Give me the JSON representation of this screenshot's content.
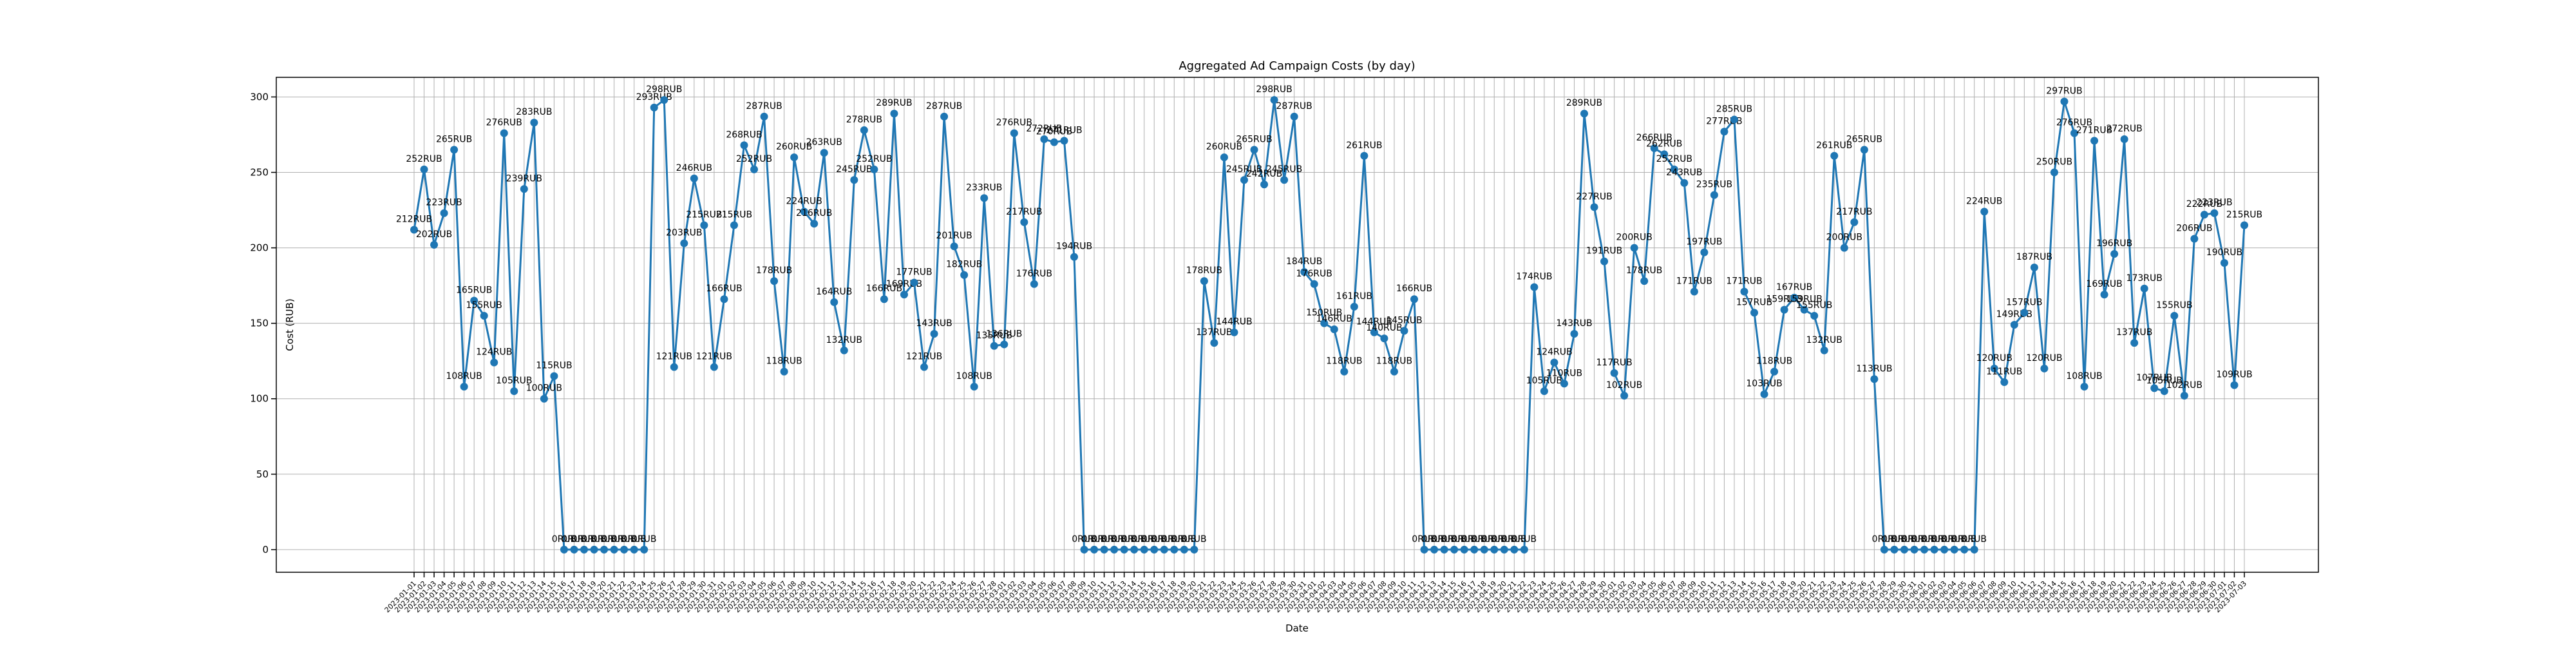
{
  "chart_data": {
    "type": "line",
    "title": "Aggregated Ad Campaign Costs (by day)",
    "x_label": "Date",
    "y_label": "Cost (RUB)",
    "categories": [
      "2023-01-01",
      "2023-01-02",
      "2023-01-03",
      "2023-01-04",
      "2023-01-05",
      "2023-01-06",
      "2023-01-07",
      "2023-01-08",
      "2023-01-09",
      "2023-01-10",
      "2023-01-11",
      "2023-01-12",
      "2023-01-13",
      "2023-01-14",
      "2023-01-15",
      "2023-01-16",
      "2023-01-17",
      "2023-01-18",
      "2023-01-19",
      "2023-01-20",
      "2023-01-21",
      "2023-01-22",
      "2023-01-23",
      "2023-01-24",
      "2023-01-25",
      "2023-01-26",
      "2023-01-27",
      "2023-01-28",
      "2023-01-29",
      "2023-01-30",
      "2023-01-31",
      "2023-02-01",
      "2023-02-02",
      "2023-02-03",
      "2023-02-04",
      "2023-02-05",
      "2023-02-06",
      "2023-02-07",
      "2023-02-08",
      "2023-02-09",
      "2023-02-10",
      "2023-02-11",
      "2023-02-12",
      "2023-02-13",
      "2023-02-14",
      "2023-02-15",
      "2023-02-16",
      "2023-02-17",
      "2023-02-18",
      "2023-02-19",
      "2023-02-20",
      "2023-02-21",
      "2023-02-22",
      "2023-02-23",
      "2023-02-24",
      "2023-02-25",
      "2023-02-26",
      "2023-02-27",
      "2023-02-28",
      "2023-03-01",
      "2023-03-02",
      "2023-03-03",
      "2023-03-04",
      "2023-03-05",
      "2023-03-06",
      "2023-03-07",
      "2023-03-08",
      "2023-03-09",
      "2023-03-10",
      "2023-03-11",
      "2023-03-12",
      "2023-03-13",
      "2023-03-14",
      "2023-03-15",
      "2023-03-16",
      "2023-03-17",
      "2023-03-18",
      "2023-03-19",
      "2023-03-20",
      "2023-03-21",
      "2023-03-22",
      "2023-03-23",
      "2023-03-24",
      "2023-03-25",
      "2023-03-26",
      "2023-03-27",
      "2023-03-28",
      "2023-03-29",
      "2023-03-30",
      "2023-03-31",
      "2023-04-01",
      "2023-04-02",
      "2023-04-03",
      "2023-04-04",
      "2023-04-05",
      "2023-04-06",
      "2023-04-07",
      "2023-04-08",
      "2023-04-09",
      "2023-04-10",
      "2023-04-11",
      "2023-04-12",
      "2023-04-13",
      "2023-04-14",
      "2023-04-15",
      "2023-04-16",
      "2023-04-17",
      "2023-04-18",
      "2023-04-19",
      "2023-04-20",
      "2023-04-21",
      "2023-04-22",
      "2023-04-23",
      "2023-04-24",
      "2023-04-25",
      "2023-04-26",
      "2023-04-27",
      "2023-04-28",
      "2023-04-29",
      "2023-04-30",
      "2023-05-01",
      "2023-05-02",
      "2023-05-03",
      "2023-05-04",
      "2023-05-05",
      "2023-05-06",
      "2023-05-07",
      "2023-05-08",
      "2023-05-09",
      "2023-05-10",
      "2023-05-11",
      "2023-05-12",
      "2023-05-13",
      "2023-05-14",
      "2023-05-15",
      "2023-05-16",
      "2023-05-17",
      "2023-05-18",
      "2023-05-19",
      "2023-05-20",
      "2023-05-21",
      "2023-05-22",
      "2023-05-23",
      "2023-05-24",
      "2023-05-25",
      "2023-05-26",
      "2023-05-27",
      "2023-05-28",
      "2023-05-29",
      "2023-05-30",
      "2023-05-31",
      "2023-06-01",
      "2023-06-02",
      "2023-06-03",
      "2023-06-04",
      "2023-06-05",
      "2023-06-06",
      "2023-06-07",
      "2023-06-08",
      "2023-06-09",
      "2023-06-10",
      "2023-06-11",
      "2023-06-12",
      "2023-06-13",
      "2023-06-14",
      "2023-06-15",
      "2023-06-16",
      "2023-06-17",
      "2023-06-18",
      "2023-06-19",
      "2023-06-20",
      "2023-06-21",
      "2023-06-22",
      "2023-06-23",
      "2023-06-24",
      "2023-06-25",
      "2023-06-26",
      "2023-06-27",
      "2023-06-28",
      "2023-06-29",
      "2023-06-30",
      "2023-07-01",
      "2023-07-02",
      "2023-07-03"
    ],
    "values": [
      212,
      252,
      202,
      223,
      265,
      108,
      165,
      155,
      124,
      276,
      105,
      239,
      283,
      100,
      115,
      0,
      0,
      0,
      0,
      0,
      0,
      0,
      0,
      0,
      293,
      298,
      121,
      203,
      246,
      215,
      121,
      166,
      215,
      268,
      252,
      287,
      178,
      118,
      260,
      224,
      216,
      263,
      164,
      132,
      245,
      278,
      252,
      166,
      289,
      169,
      177,
      121,
      143,
      287,
      201,
      182,
      108,
      233,
      135,
      136,
      276,
      217,
      176,
      272,
      270,
      271,
      194,
      0,
      0,
      0,
      0,
      0,
      0,
      0,
      0,
      0,
      0,
      0,
      0,
      178,
      137,
      260,
      144,
      245,
      265,
      242,
      298,
      245,
      287,
      184,
      176,
      150,
      146,
      118,
      161,
      261,
      144,
      140,
      118,
      145,
      166,
      0,
      0,
      0,
      0,
      0,
      0,
      0,
      0,
      0,
      0,
      0,
      174,
      105,
      124,
      110,
      143,
      289,
      227,
      191,
      117,
      102,
      200,
      178,
      266,
      262,
      252,
      243,
      171,
      197,
      235,
      277,
      285,
      171,
      157,
      103,
      118,
      159,
      167,
      159,
      155,
      132,
      261,
      200,
      217,
      265,
      113,
      0,
      0,
      0,
      0,
      0,
      0,
      0,
      0,
      0,
      0,
      224,
      120,
      111,
      149,
      157,
      187,
      120,
      250,
      297,
      276,
      108,
      271,
      169,
      196,
      272,
      137,
      173,
      107,
      105,
      155,
      102,
      206,
      222,
      223,
      190,
      109,
      215
    ],
    "value_labels": [
      "212RUB",
      "252RUB",
      "202RUB",
      "223RUB",
      "265RUB",
      "108RUB",
      "165RUB",
      "155RUB",
      "124RUB",
      "276RUB",
      "105RUB",
      "239RUB",
      "283RUB",
      "100RUB",
      "115RUB",
      "0RUB",
      "0RUB",
      "0RUB",
      "0RUB",
      "0RUB",
      "0RUB",
      "0RUB",
      "0RUB",
      "0RUB",
      "293RUB",
      "298RUB",
      "121RUB",
      "203RUB",
      "246RUB",
      "215RUB",
      "121RUB",
      "166RUB",
      "215RUB",
      "268RUB",
      "252RUB",
      "287RUB",
      "178RUB",
      "118RUB",
      "260RUB",
      "224RUB",
      "216RUB",
      "263RUB",
      "164RUB",
      "132RUB",
      "245RUB",
      "278RUB",
      "252RUB",
      "166RUB",
      "289RUB",
      "169RUB",
      "177RUB",
      "121RUB",
      "143RUB",
      "287RUB",
      "201RUB",
      "182RUB",
      "108RUB",
      "233RUB",
      "135RUB",
      "136RUB",
      "276RUB",
      "217RUB",
      "176RUB",
      "272RUB",
      "270RUB",
      "271RUB",
      "194RUB",
      "0RUB",
      "0RUB",
      "0RUB",
      "0RUB",
      "0RUB",
      "0RUB",
      "0RUB",
      "0RUB",
      "0RUB",
      "0RUB",
      "0RUB",
      "0RUB",
      "178RUB",
      "137RUB",
      "260RUB",
      "144RUB",
      "245RUB",
      "265RUB",
      "242RUB",
      "298RUB",
      "245RUB",
      "287RUB",
      "184RUB",
      "176RUB",
      "150RUB",
      "146RUB",
      "118RUB",
      "161RUB",
      "261RUB",
      "144RUB",
      "140RUB",
      "118RUB",
      "145RUB",
      "166RUB",
      "0RUB",
      "0RUB",
      "0RUB",
      "0RUB",
      "0RUB",
      "0RUB",
      "0RUB",
      "0RUB",
      "0RUB",
      "0RUB",
      "0RUB",
      "174RUB",
      "105RUB",
      "124RUB",
      "110RUB",
      "143RUB",
      "289RUB",
      "227RUB",
      "191RUB",
      "117RUB",
      "102RUB",
      "200RUB",
      "178RUB",
      "266RUB",
      "262RUB",
      "252RUB",
      "243RUB",
      "171RUB",
      "197RUB",
      "235RUB",
      "277RUB",
      "285RUB",
      "171RUB",
      "157RUB",
      "103RUB",
      "118RUB",
      "159RUB",
      "167RUB",
      "159RUB",
      "155RUB",
      "132RUB",
      "261RUB",
      "200RUB",
      "217RUB",
      "265RUB",
      "113RUB",
      "0RUB",
      "0RUB",
      "0RUB",
      "0RUB",
      "0RUB",
      "0RUB",
      "0RUB",
      "0RUB",
      "0RUB",
      "0RUB",
      "224RUB",
      "120RUB",
      "111RUB",
      "149RUB",
      "157RUB",
      "187RUB",
      "120RUB",
      "250RUB",
      "297RUB",
      "276RUB",
      "108RUB",
      "271RUB",
      "169RUB",
      "196RUB",
      "272RUB",
      "137RUB",
      "173RUB",
      "107RUB",
      "105RUB",
      "155RUB",
      "102RUB",
      "206RUB",
      "222RUB",
      "223RUB",
      "190RUB",
      "109RUB",
      "215RUB"
    ],
    "color": "#1f77b4",
    "ylim": [
      -15,
      313
    ],
    "yticks": [
      0,
      50,
      100,
      150,
      200,
      250,
      300
    ],
    "grid": true
  }
}
